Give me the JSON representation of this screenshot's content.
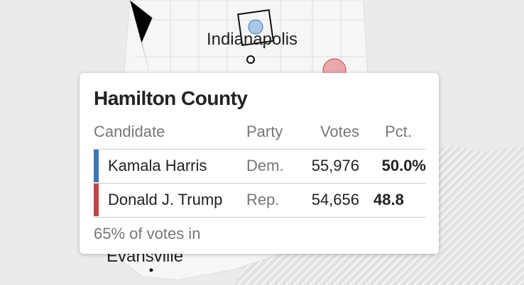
{
  "map": {
    "labels": [
      "Indianapolis",
      "Evansville"
    ]
  },
  "tooltip": {
    "title": "Hamilton County",
    "table": {
      "header": [
        "Candidate",
        "Party",
        "Votes",
        "Pct."
      ],
      "rows": [
        [
          "Kamala Harris",
          "Dem.",
          "55,976",
          "50.0%"
        ],
        [
          "Donald J. Trump",
          "Rep.",
          "54,656",
          "48.8"
        ]
      ]
    },
    "footer": "65% of votes in"
  }
}
